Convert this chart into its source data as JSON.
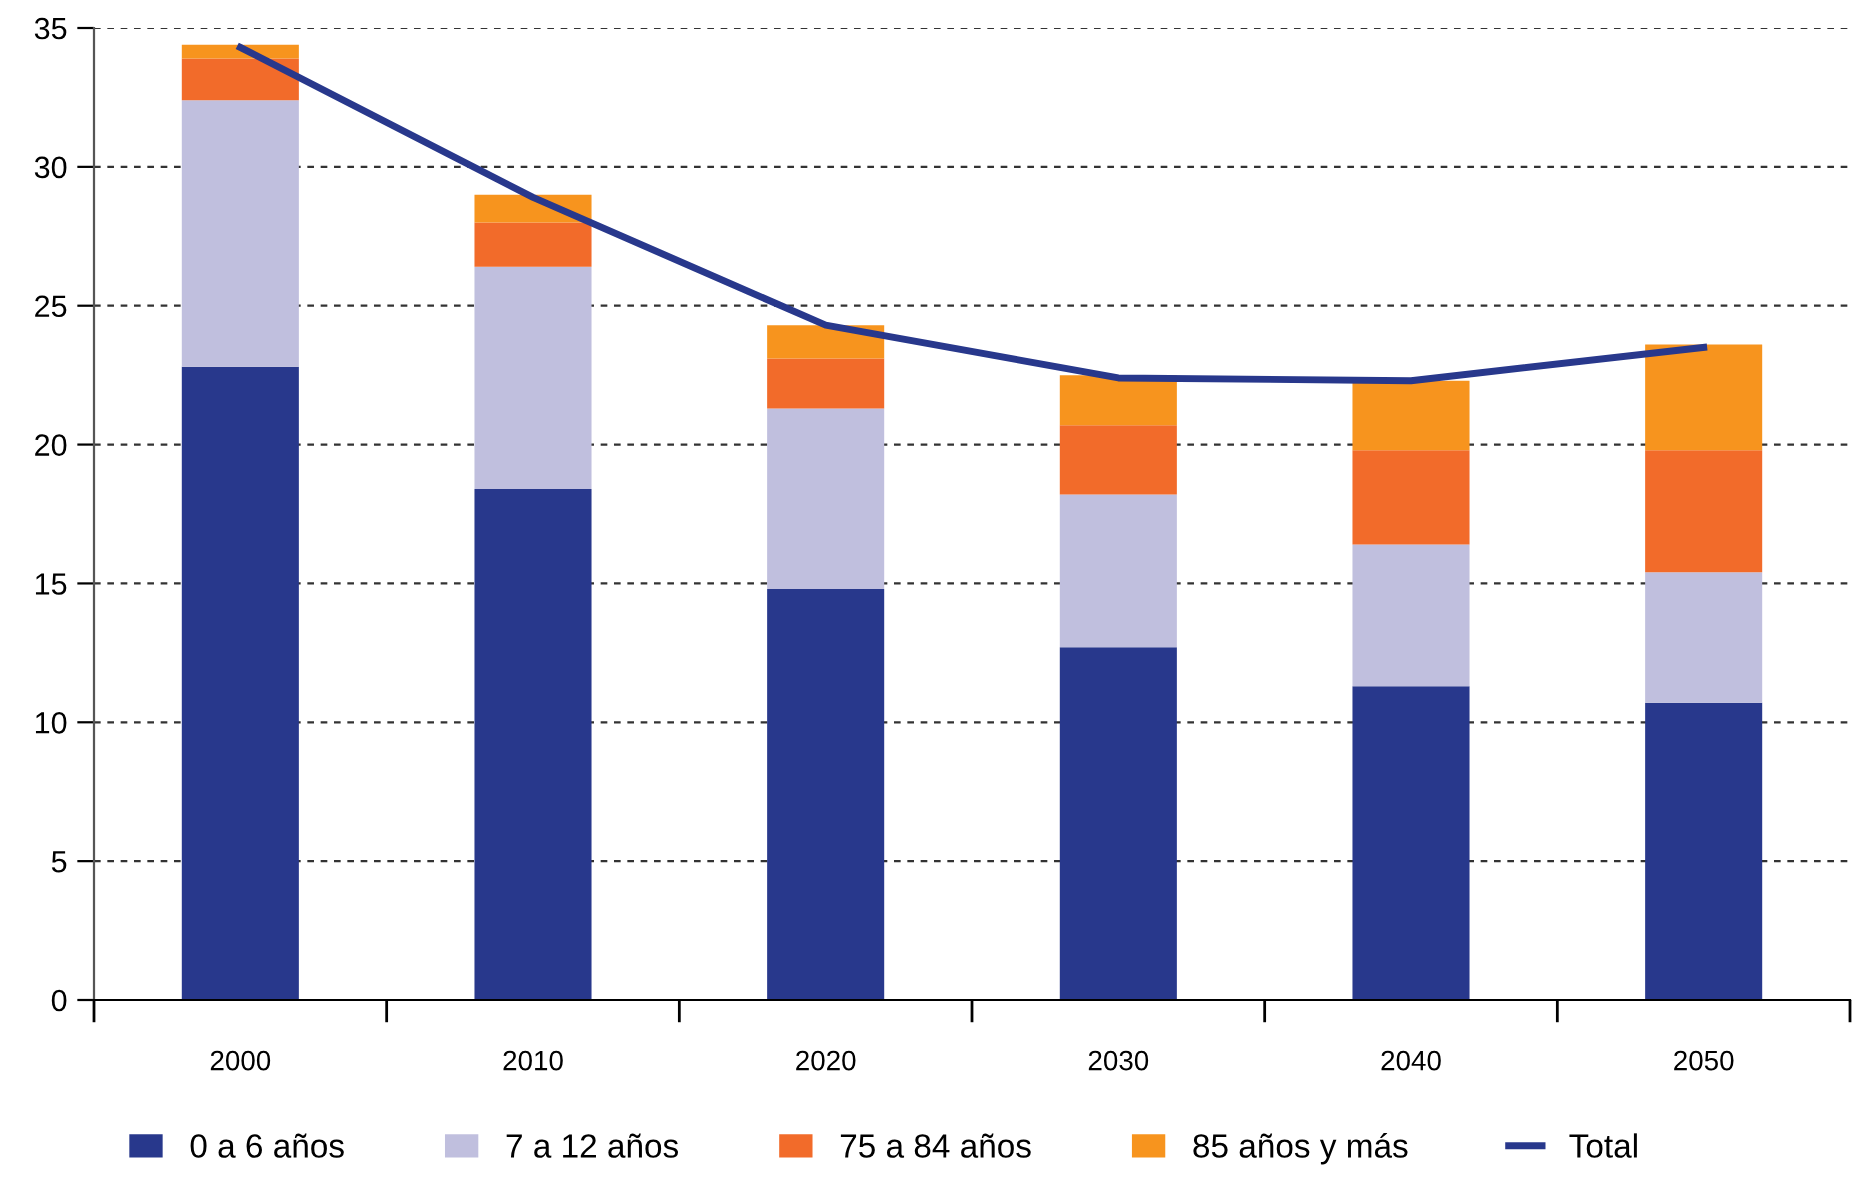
{
  "chart_data": {
    "type": "bar",
    "stacked": true,
    "categories": [
      "2000",
      "2010",
      "2020",
      "2030",
      "2040",
      "2050"
    ],
    "series": [
      {
        "name": "0 a 6 años",
        "color": "#28388c",
        "values": [
          22.8,
          18.4,
          14.8,
          12.7,
          11.3,
          10.7
        ]
      },
      {
        "name": "7 a 12 años",
        "color": "#c0bfde",
        "values": [
          9.6,
          8.0,
          6.5,
          5.5,
          5.1,
          4.7
        ]
      },
      {
        "name": "75 a 84 años",
        "color": "#f26b2a",
        "values": [
          1.5,
          1.6,
          1.8,
          2.5,
          3.4,
          4.4
        ]
      },
      {
        "name": "85 años y más",
        "color": "#f7941e",
        "values": [
          0.5,
          1.0,
          1.2,
          1.8,
          2.5,
          3.8
        ]
      },
      {
        "name": "Total",
        "type": "line",
        "color": "#28388c",
        "values": [
          34.3,
          28.9,
          24.3,
          22.4,
          22.3,
          23.5
        ]
      }
    ],
    "ylim": [
      0,
      35
    ],
    "yticks": [
      0,
      5,
      10,
      15,
      20,
      25,
      30,
      35
    ],
    "grid": "y",
    "legend": "bottom",
    "line_style": "solid",
    "marker": "none"
  }
}
